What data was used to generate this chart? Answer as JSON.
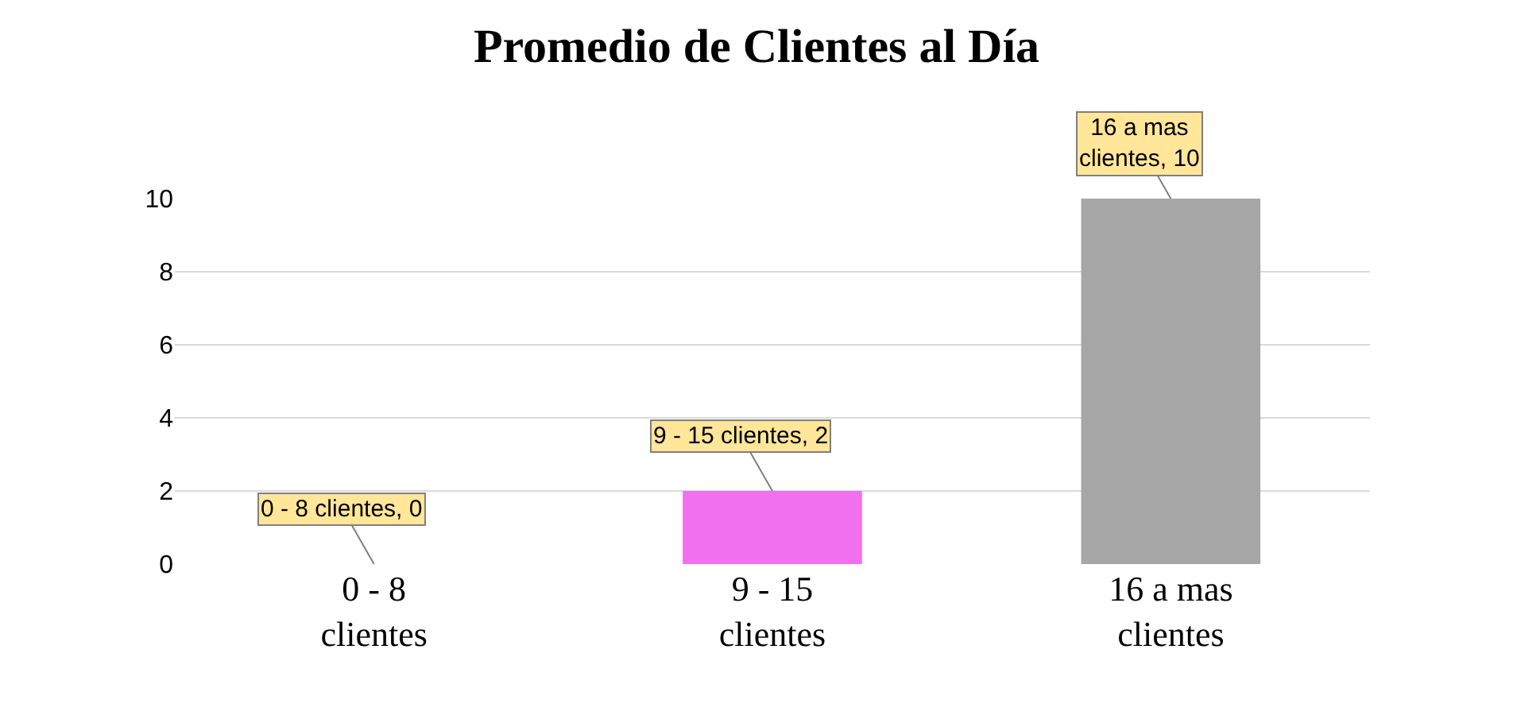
{
  "chart_data": {
    "type": "bar",
    "title": "Promedio de Clientes al Día",
    "categories": [
      "0 - 8 clientes",
      "9 - 15 clientes",
      "16 a mas clientes"
    ],
    "values": [
      0,
      2,
      10
    ],
    "colors": [
      "#4f81bd",
      "#f070f0",
      "#a6a6a6"
    ],
    "value_labels": [
      "0 - 8 clientes, 0",
      "9 - 15 clientes, 2",
      "16 a mas clientes, 10"
    ],
    "ylim": [
      0,
      10
    ],
    "yticks": [
      0,
      2,
      4,
      6,
      8,
      10
    ],
    "grid": "y"
  }
}
